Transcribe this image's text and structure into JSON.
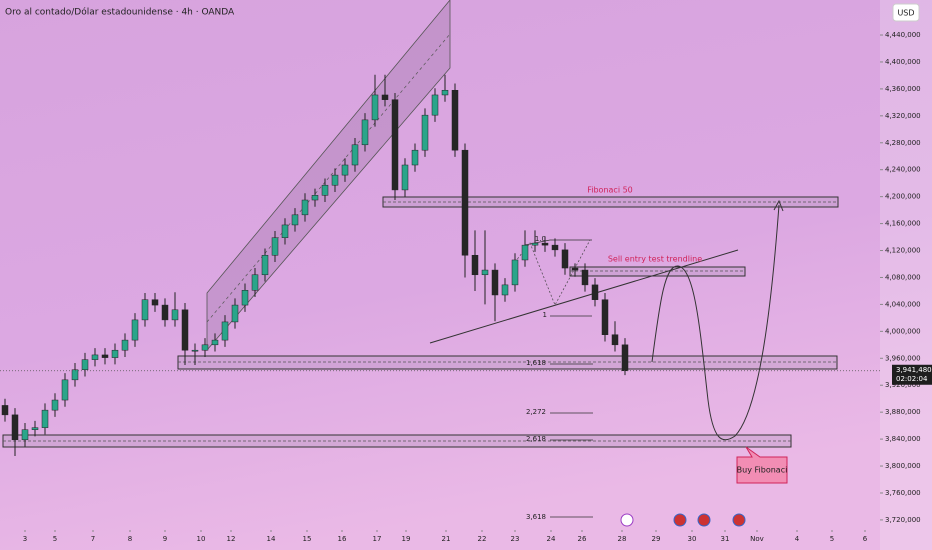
{
  "chart_data": {
    "type": "candlestick",
    "title": "Oro al contado/Dólar estadounidense · 4h · OANDA",
    "currency": "USD",
    "up_color": "#2aa58a",
    "down_color": "#262626",
    "x": [
      0,
      1,
      2,
      3,
      4,
      5,
      6,
      7,
      8,
      9,
      10,
      11,
      12,
      13,
      14,
      15,
      16,
      17,
      18,
      19,
      20,
      21,
      22,
      23,
      24,
      25,
      26,
      27,
      28,
      29,
      30,
      31,
      32,
      33,
      34,
      35,
      36,
      37,
      38,
      39,
      40,
      41,
      42,
      43,
      44,
      45,
      46,
      47,
      48,
      49,
      50,
      51,
      52,
      53,
      54,
      55,
      56,
      57,
      58,
      59,
      60,
      61,
      62
    ],
    "open": [
      3890000,
      3876000,
      3839000,
      3854000,
      3857000,
      3883000,
      3898000,
      3928000,
      3943000,
      3958000,
      3965000,
      3961000,
      3972000,
      3987000,
      4017000,
      4047000,
      4039000,
      4017000,
      4032000,
      3972000,
      3972000,
      3980000,
      3987000,
      4014000,
      4039000,
      4061000,
      4084000,
      4113000,
      4139000,
      4158000,
      4173000,
      4195000,
      4202000,
      4217000,
      4232000,
      4247000,
      4277000,
      4314000,
      4351000,
      4344000,
      4210000,
      4247000,
      4269000,
      4321000,
      4351000,
      4358000,
      4269000,
      4113000,
      4084000,
      4091000,
      4054000,
      4069000,
      4106000,
      4128000,
      4131000,
      4128000,
      4121000,
      4094000,
      4091000,
      4069000,
      4047000,
      3995000,
      3980000
    ],
    "high": [
      3900000,
      3886000,
      3864000,
      3867000,
      3893000,
      3908000,
      3938000,
      3953000,
      3968000,
      3975000,
      3975000,
      3982000,
      3997000,
      4027000,
      4057000,
      4057000,
      4049000,
      4058000,
      4042000,
      3982000,
      3990000,
      3997000,
      4024000,
      4049000,
      4071000,
      4094000,
      4123000,
      4149000,
      4168000,
      4183000,
      4205000,
      4212000,
      4227000,
      4242000,
      4257000,
      4287000,
      4324000,
      4381000,
      4381000,
      4354000,
      4257000,
      4279000,
      4331000,
      4361000,
      4381000,
      4368000,
      4279000,
      4150000,
      4150000,
      4101000,
      4079000,
      4116000,
      4150000,
      4150000,
      4141000,
      4138000,
      4131000,
      4101000,
      4101000,
      4079000,
      4057000,
      4015000,
      3990000
    ],
    "low": [
      3866000,
      3815000,
      3829000,
      3844000,
      3847000,
      3873000,
      3888000,
      3918000,
      3933000,
      3948000,
      3951000,
      3951000,
      3962000,
      3977000,
      4007000,
      4029000,
      4007000,
      4007000,
      3950000,
      3950000,
      3962000,
      3970000,
      3977000,
      4004000,
      4029000,
      4051000,
      4074000,
      4103000,
      4129000,
      4148000,
      4163000,
      4185000,
      4192000,
      4207000,
      4222000,
      4237000,
      4267000,
      4304000,
      4334000,
      4195000,
      4200000,
      4237000,
      4259000,
      4311000,
      4341000,
      4259000,
      4080000,
      4060000,
      4040000,
      4015000,
      4044000,
      4059000,
      4096000,
      4118000,
      4118000,
      4111000,
      4084000,
      4081000,
      4059000,
      4037000,
      3985000,
      3970000,
      3935000
    ],
    "close": [
      3876000,
      3839000,
      3854000,
      3857000,
      3883000,
      3898000,
      3928000,
      3943000,
      3958000,
      3965000,
      3961000,
      3972000,
      3987000,
      4017000,
      4047000,
      4039000,
      4017000,
      4032000,
      3972000,
      3972000,
      3980000,
      3987000,
      4014000,
      4039000,
      4061000,
      4084000,
      4113000,
      4139000,
      4158000,
      4173000,
      4195000,
      4202000,
      4217000,
      4232000,
      4247000,
      4277000,
      4314000,
      4351000,
      4344000,
      4210000,
      4247000,
      4269000,
      4321000,
      4351000,
      4358000,
      4269000,
      4113000,
      4084000,
      4091000,
      4054000,
      4069000,
      4106000,
      4128000,
      4131000,
      4128000,
      4121000,
      4094000,
      4091000,
      4069000,
      4047000,
      3995000,
      3980000,
      3941480
    ],
    "last_price": {
      "value": 3941480,
      "label": "3,941,480"
    },
    "countdown": "02:02:04",
    "xlim": [
      -0.5,
      87.5
    ],
    "ylim": [
      3708000,
      4492000
    ],
    "xticks": [
      {
        "value": 2,
        "label": "3"
      },
      {
        "value": 5,
        "label": "5"
      },
      {
        "value": 8.8,
        "label": "7"
      },
      {
        "value": 12.5,
        "label": "8"
      },
      {
        "value": 16,
        "label": "9"
      },
      {
        "value": 19.6,
        "label": "10"
      },
      {
        "value": 22.6,
        "label": "12"
      },
      {
        "value": 26.6,
        "label": "14"
      },
      {
        "value": 30.2,
        "label": "15"
      },
      {
        "value": 33.7,
        "label": "16"
      },
      {
        "value": 37.2,
        "label": "17"
      },
      {
        "value": 40.1,
        "label": "19"
      },
      {
        "value": 44.1,
        "label": "21"
      },
      {
        "value": 47.7,
        "label": "22"
      },
      {
        "value": 51,
        "label": "23"
      },
      {
        "value": 54.6,
        "label": "24"
      },
      {
        "value": 57.7,
        "label": "26"
      },
      {
        "value": 61.7,
        "label": "28"
      },
      {
        "value": 65.1,
        "label": "29"
      },
      {
        "value": 68.7,
        "label": "30"
      },
      {
        "value": 72,
        "label": "31"
      },
      {
        "value": 75.2,
        "label": "Nov"
      },
      {
        "value": 79.2,
        "label": "4"
      },
      {
        "value": 82.7,
        "label": "5"
      },
      {
        "value": 86,
        "label": "6"
      }
    ],
    "yticks": [
      {
        "value": 4440000,
        "label": "4,440,000"
      },
      {
        "value": 4400000,
        "label": "4,400,000"
      },
      {
        "value": 4360000,
        "label": "4,360,000"
      },
      {
        "value": 4320000,
        "label": "4,320,000"
      },
      {
        "value": 4280000,
        "label": "4,280,000"
      },
      {
        "value": 4240000,
        "label": "4,240,000"
      },
      {
        "value": 4200000,
        "label": "4,200,000"
      },
      {
        "value": 4160000,
        "label": "4,160,000"
      },
      {
        "value": 4120000,
        "label": "4,120,000"
      },
      {
        "value": 4080000,
        "label": "4,080,000"
      },
      {
        "value": 4040000,
        "label": "4,040,000"
      },
      {
        "value": 4000000,
        "label": "4,000,000"
      },
      {
        "value": 3960000,
        "label": "3,960,000"
      },
      {
        "value": 3920000,
        "label": "3,920,000"
      },
      {
        "value": 3880000,
        "label": "3,880,000"
      },
      {
        "value": 3840000,
        "label": "3,840,000"
      },
      {
        "value": 3800000,
        "label": "3,800,000"
      },
      {
        "value": 3760000,
        "label": "3,760,000"
      },
      {
        "value": 3720000,
        "label": "3,720,000"
      }
    ],
    "annotations": [
      "Fibonaci 50",
      "Sell entry test trendline",
      "Buy Fibonaci",
      "1,618",
      "2,272",
      "2,618",
      "3,618",
      "1.0",
      "1"
    ]
  }
}
